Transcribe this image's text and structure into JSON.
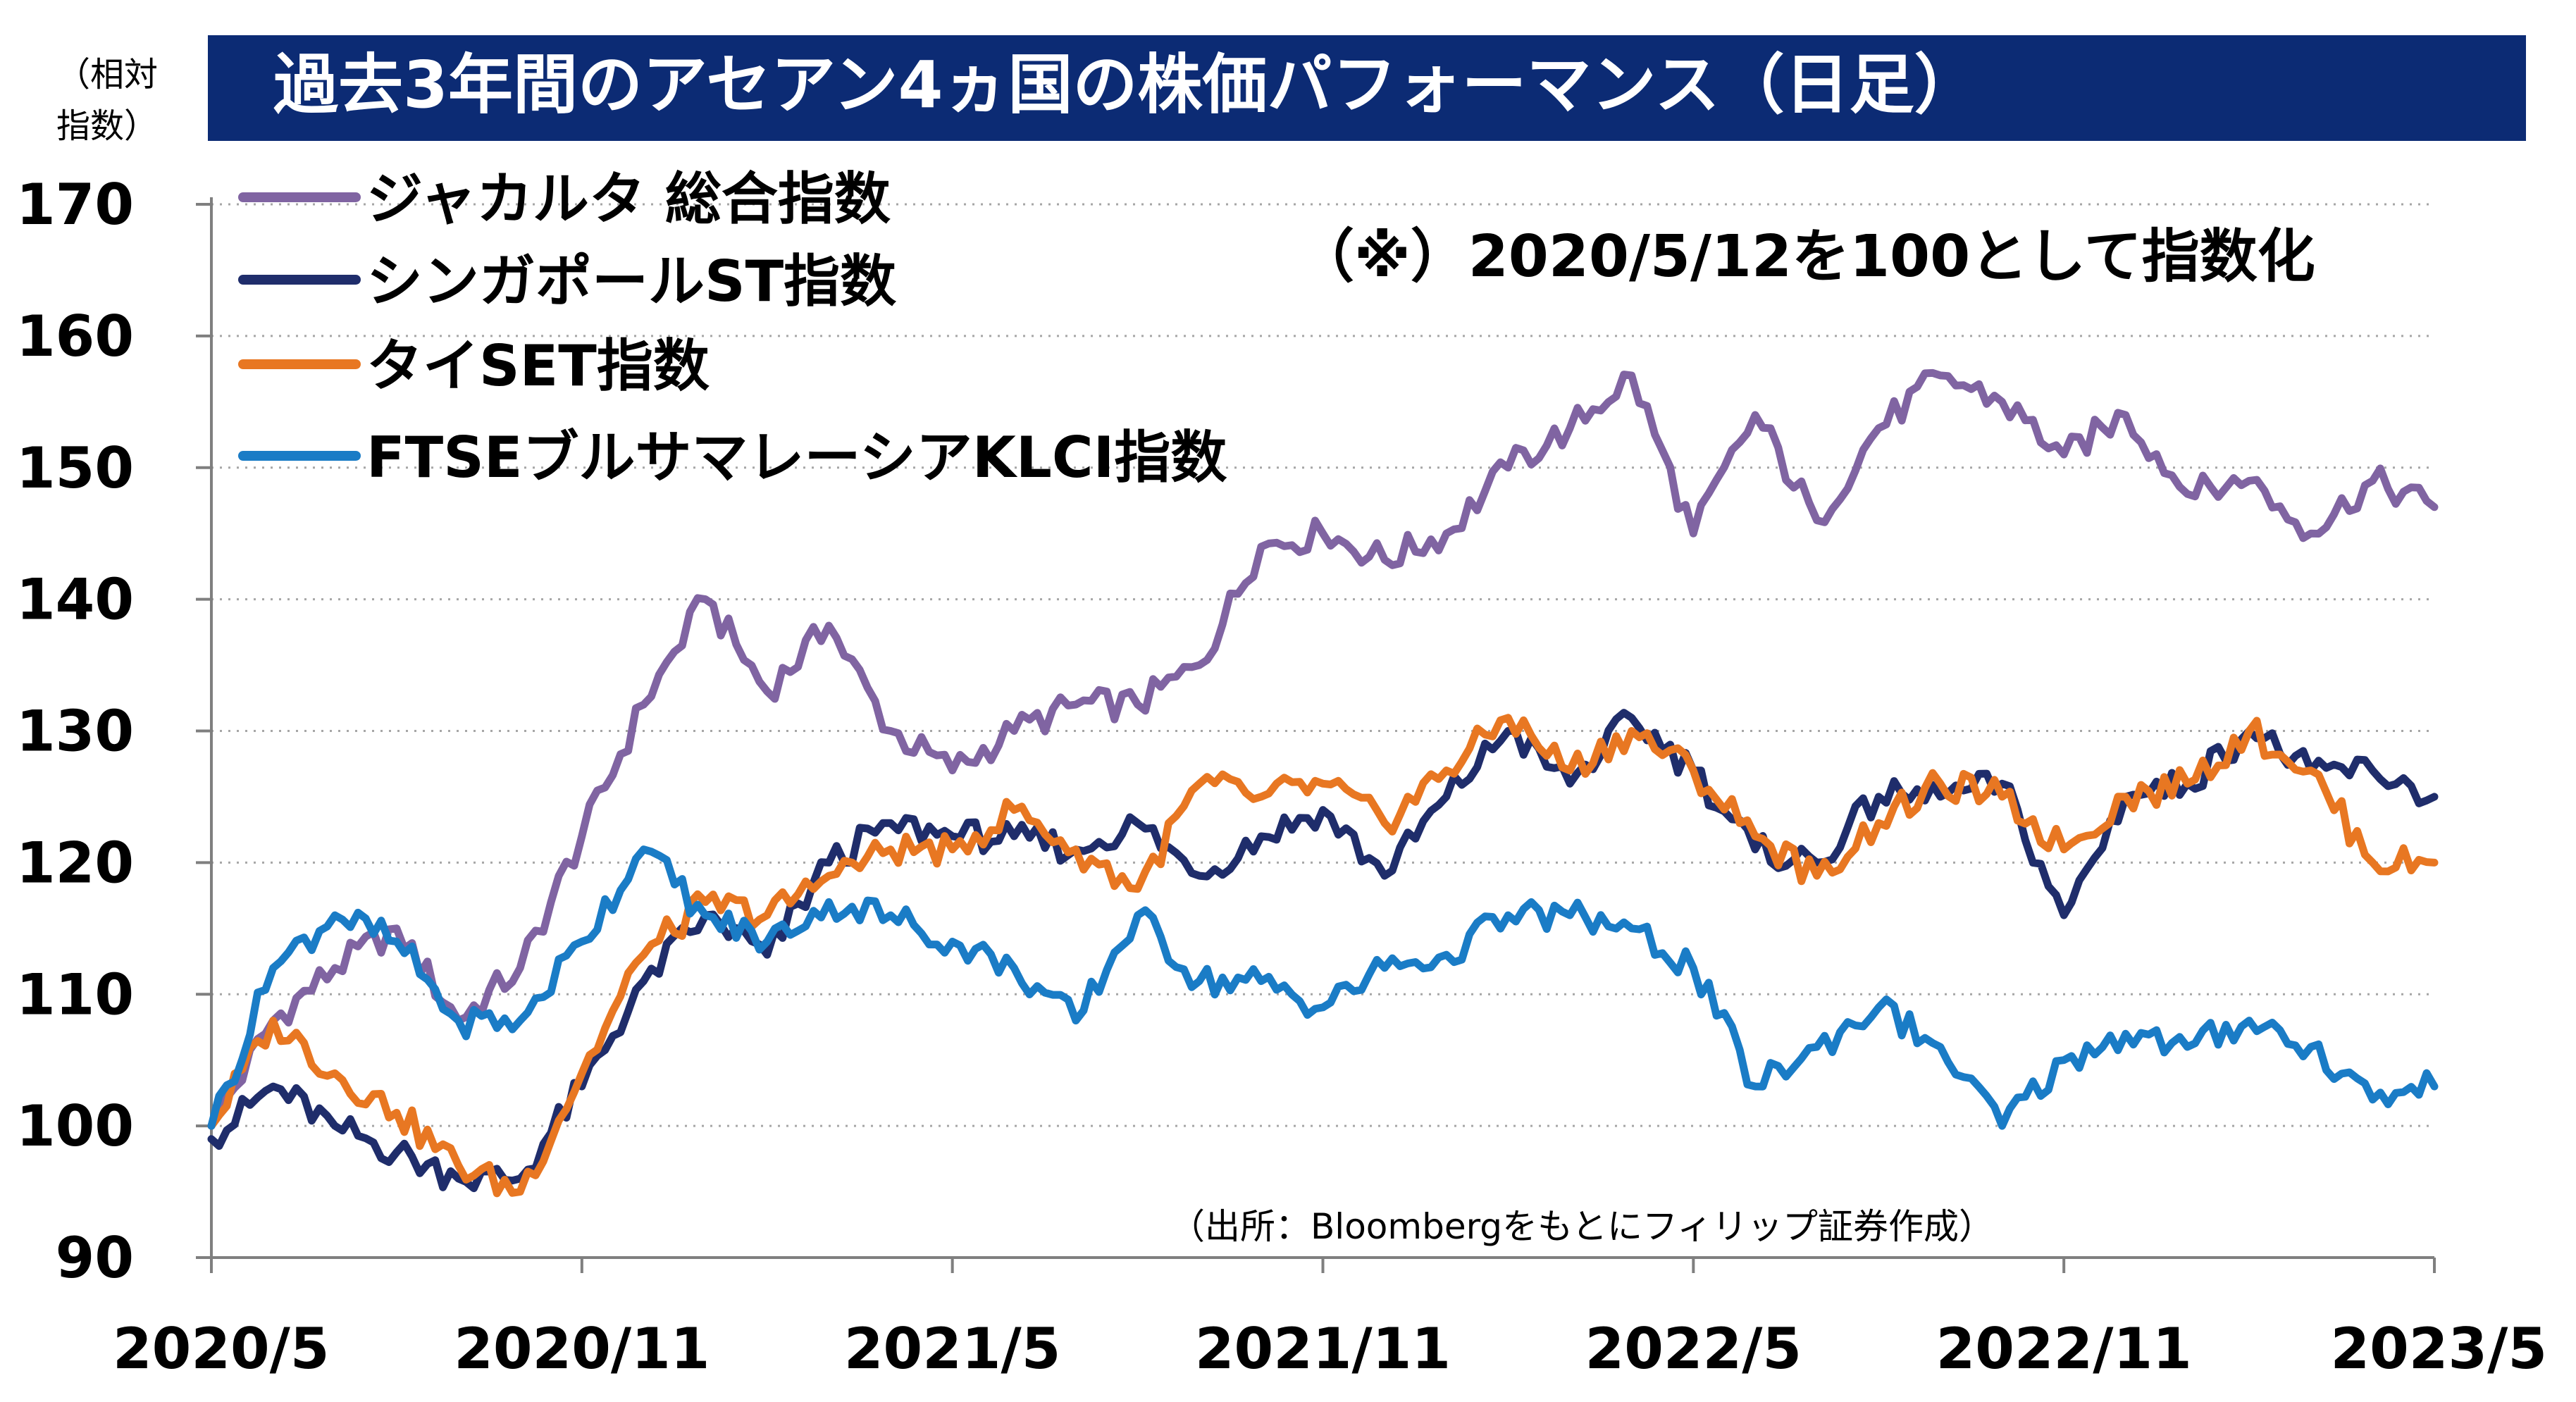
{
  "chart_data": {
    "type": "line",
    "title": "過去3年間のアセアン4ヵ国の株価パフォーマンス（日足）",
    "ylabel_lines": [
      "（相対",
      "指数）"
    ],
    "note": "（※）2020/5/12を100として指数化",
    "source": "（出所：Bloombergをもとにフィリップ証券作成）",
    "ylim": [
      90,
      170
    ],
    "y_ticks": [
      90,
      100,
      110,
      120,
      130,
      140,
      150,
      160,
      170
    ],
    "x_ticks": [
      "2020/5",
      "2020/11",
      "2021/5",
      "2021/11",
      "2022/5",
      "2022/11",
      "2023/5"
    ],
    "grid": "horizontal-dotted",
    "legend_position": "top-left",
    "x": [
      "2020/5",
      "2020/6",
      "2020/7",
      "2020/8",
      "2020/9",
      "2020/10",
      "2020/11",
      "2020/12",
      "2021/1",
      "2021/2",
      "2021/3",
      "2021/4",
      "2021/5",
      "2021/6",
      "2021/7",
      "2021/8",
      "2021/9",
      "2021/10",
      "2021/11",
      "2021/12",
      "2022/1",
      "2022/2",
      "2022/3",
      "2022/4",
      "2022/5",
      "2022/6",
      "2022/7",
      "2022/8",
      "2022/9",
      "2022/10",
      "2022/11",
      "2022/12",
      "2023/1",
      "2023/2",
      "2023/3",
      "2023/4",
      "2023/5"
    ],
    "series": [
      {
        "name": "ジャカルタ 総合指数",
        "color": "#8064A2",
        "values": [
          100,
          108,
          112,
          115,
          108,
          112,
          122,
          132,
          140,
          133,
          138,
          130,
          127,
          130,
          132,
          132,
          135,
          144,
          145,
          143,
          145,
          150,
          153,
          157,
          145,
          154,
          146,
          153,
          157,
          155,
          151,
          154,
          148,
          149,
          145,
          149,
          147
        ]
      },
      {
        "name": "シンガポールST指数",
        "color": "#1F2D6B",
        "values": [
          99,
          103,
          100,
          98,
          96,
          96,
          103,
          111,
          116,
          113,
          120,
          123,
          122,
          122,
          121,
          123,
          119,
          122,
          124,
          119,
          125,
          130,
          126,
          131,
          127,
          121,
          120,
          125,
          125,
          126,
          116,
          125,
          126,
          130,
          127,
          127,
          125
        ]
      },
      {
        "name": "タイSET指数",
        "color": "#E87722",
        "values": [
          100,
          108,
          104,
          101,
          97,
          95,
          104,
          113,
          117,
          116,
          119,
          121,
          121,
          124,
          121,
          118,
          126,
          125,
          126,
          123,
          127,
          131,
          127,
          130,
          127,
          122,
          119,
          123,
          126,
          125,
          121,
          125,
          126,
          130,
          127,
          120,
          120
        ]
      },
      {
        "name": "FTSEブルサマレーシアKLCI指数",
        "color": "#1A7CC6",
        "values": [
          100,
          112,
          116,
          114,
          108,
          108,
          114,
          121,
          116,
          114,
          117,
          116,
          114,
          112,
          108,
          116,
          111,
          111,
          109,
          112,
          113,
          116,
          116,
          115,
          112,
          103,
          106,
          109,
          106,
          100,
          105,
          107,
          106,
          108,
          106,
          102,
          103
        ]
      }
    ]
  }
}
